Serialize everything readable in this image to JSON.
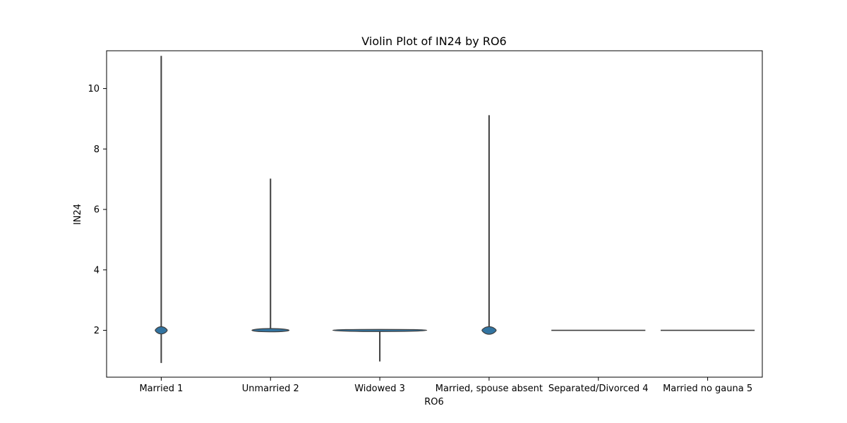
{
  "chart_data": {
    "type": "violin",
    "title": "Violin Plot of IN24 by RO6",
    "xlabel": "RO6",
    "ylabel": "IN24",
    "ylim": [
      0.45,
      11.25
    ],
    "yticks": [
      2,
      4,
      6,
      8,
      10
    ],
    "grid": false,
    "legend": "none",
    "categories": [
      "Married 1",
      "Unmarried 2",
      "Widowed 3",
      "Married, spouse absent",
      "Separated/Divorced 4",
      "Married no gauna 5"
    ],
    "violins": [
      {
        "category": "Married 1",
        "min": 0.92,
        "max": 11.08,
        "center": 2.0,
        "body_low": 1.88,
        "body_high": 2.12,
        "rel_width": 0.11
      },
      {
        "category": "Unmarried 2",
        "min": 2.0,
        "max": 7.02,
        "center": 2.0,
        "body_low": 1.95,
        "body_high": 2.06,
        "rel_width": 0.34
      },
      {
        "category": "Widowed 3",
        "min": 0.97,
        "max": 2.03,
        "center": 2.0,
        "body_low": 1.96,
        "body_high": 2.03,
        "rel_width": 0.86
      },
      {
        "category": "Married, spouse absent",
        "min": 1.88,
        "max": 9.12,
        "center": 2.0,
        "body_low": 1.87,
        "body_high": 2.12,
        "rel_width": 0.13
      },
      {
        "category": "Separated/Divorced 4",
        "min": 2.0,
        "max": 2.0,
        "center": 2.0,
        "body_low": 2.0,
        "body_high": 2.0,
        "rel_width": 0.86
      },
      {
        "category": "Married no gauna 5",
        "min": 2.0,
        "max": 2.0,
        "center": 2.0,
        "body_low": 2.0,
        "body_high": 2.0,
        "rel_width": 0.86
      }
    ],
    "colors": {
      "fill": "#3274a1",
      "line": "#3f3f3f",
      "axis": "#000000",
      "background": "#ffffff"
    }
  }
}
